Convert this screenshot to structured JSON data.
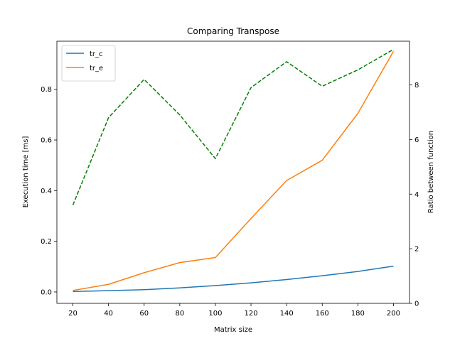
{
  "chart_data": {
    "type": "line",
    "title": "Comparing Transpose",
    "xlabel": "Matrix size",
    "ylabel": "Execution time [ms]",
    "y2label": "Ratio between function",
    "x": [
      20,
      40,
      60,
      80,
      100,
      120,
      140,
      160,
      180,
      200
    ],
    "xticks": [
      "20",
      "40",
      "60",
      "80",
      "100",
      "120",
      "140",
      "160",
      "180",
      "200"
    ],
    "xlim": [
      11,
      209
    ],
    "ylim": [
      -0.045,
      0.99
    ],
    "yticks": [
      "0.0",
      "0.2",
      "0.4",
      "0.6",
      "0.8"
    ],
    "y2lim": [
      0,
      9.6
    ],
    "y2ticks": [
      "0",
      "2",
      "4",
      "6",
      "8"
    ],
    "legend_position": "top-left",
    "series": [
      {
        "name": "tr_c",
        "axis": "left",
        "color": "#1f77b4",
        "style": "solid",
        "values": [
          0.002,
          0.005,
          0.009,
          0.016,
          0.025,
          0.036,
          0.049,
          0.064,
          0.081,
          0.102
        ]
      },
      {
        "name": "tr_e",
        "axis": "left",
        "color": "#ff7f0e",
        "style": "solid",
        "values": [
          0.006,
          0.03,
          0.076,
          0.116,
          0.136,
          0.29,
          0.44,
          0.52,
          0.705,
          0.95
        ]
      },
      {
        "name": "",
        "axis": "right",
        "color": "#008000",
        "style": "dashed",
        "values": [
          3.6,
          6.8,
          8.2,
          6.9,
          5.3,
          7.9,
          8.85,
          7.95,
          8.55,
          9.3
        ]
      }
    ]
  }
}
